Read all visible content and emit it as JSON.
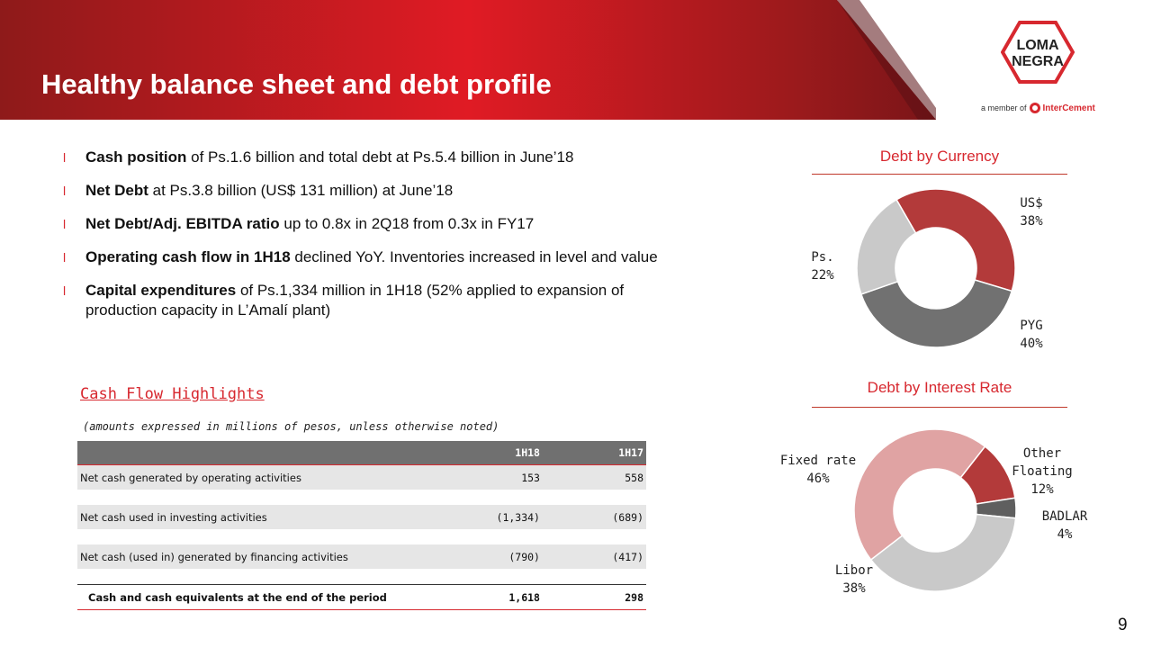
{
  "header": {
    "title": "Healthy balance sheet and debt profile",
    "logo_line1": "LOMA",
    "logo_line2": "NEGRA",
    "member_text": "a member of",
    "member_brand": "InterCement"
  },
  "bullets": [
    {
      "bold": "Cash position",
      "text": " of Ps.1.6 billion and total debt at Ps.5.4 billion in June’18"
    },
    {
      "bold": "Net Debt",
      "text": " at Ps.3.8 billion (US$ 131 million) at June’18"
    },
    {
      "bold": "Net Debt/Adj. EBITDA ratio",
      "text": " up to 0.8x in 2Q18 from 0.3x in FY17"
    },
    {
      "bold": "Operating cash flow in 1H18",
      "text": " declined YoY. Inventories increased in level and value"
    },
    {
      "bold": "Capital expenditures",
      "text": " of Ps.1,334 million in 1H18 (52% applied to expansion of production capacity in L’Amalí plant)"
    }
  ],
  "cash_flow": {
    "title": "Cash Flow Highlights",
    "note": "(amounts expressed in millions of pesos, unless otherwise noted)",
    "columns": [
      "1H18",
      "1H17"
    ],
    "rows": [
      {
        "label": "Net cash generated by operating activities",
        "1H18": "153",
        "1H17": "558"
      },
      {
        "label": "Net cash used in investing activities",
        "1H18": "(1,334)",
        "1H17": "(689)"
      },
      {
        "label": "Net cash (used in) generated by financing activities",
        "1H18": "(790)",
        "1H17": "(417)"
      }
    ],
    "total": {
      "label": "Cash and cash equivalents at the end of the period",
      "1H18": "1,618",
      "1H17": "298"
    }
  },
  "chart_data": [
    {
      "type": "pie",
      "title": "Debt by Currency",
      "slices": [
        {
          "label": "US$",
          "value": 38,
          "display": "38%",
          "color": "#b33a3a"
        },
        {
          "label": "PYG",
          "value": 40,
          "display": "40%",
          "color": "#717171"
        },
        {
          "label": "Ps.",
          "value": 22,
          "display": "22%",
          "color": "#c9c9c9"
        }
      ]
    },
    {
      "type": "pie",
      "title": "Debt by Interest Rate",
      "slices": [
        {
          "label": "Other Floating",
          "label_lines": [
            "Other",
            "Floating"
          ],
          "value": 12,
          "display": "12%",
          "color": "#b33a3a"
        },
        {
          "label": "BADLAR",
          "label_lines": [
            "BADLAR"
          ],
          "value": 4,
          "display": "4%",
          "color": "#5f5f5f"
        },
        {
          "label": "Libor",
          "label_lines": [
            "Libor"
          ],
          "value": 38,
          "display": "38%",
          "color": "#c9c9c9"
        },
        {
          "label": "Fixed rate",
          "label_lines": [
            "Fixed rate"
          ],
          "value": 46,
          "display": "46%",
          "color": "#e0a3a3"
        }
      ]
    }
  ],
  "page_number": "9"
}
